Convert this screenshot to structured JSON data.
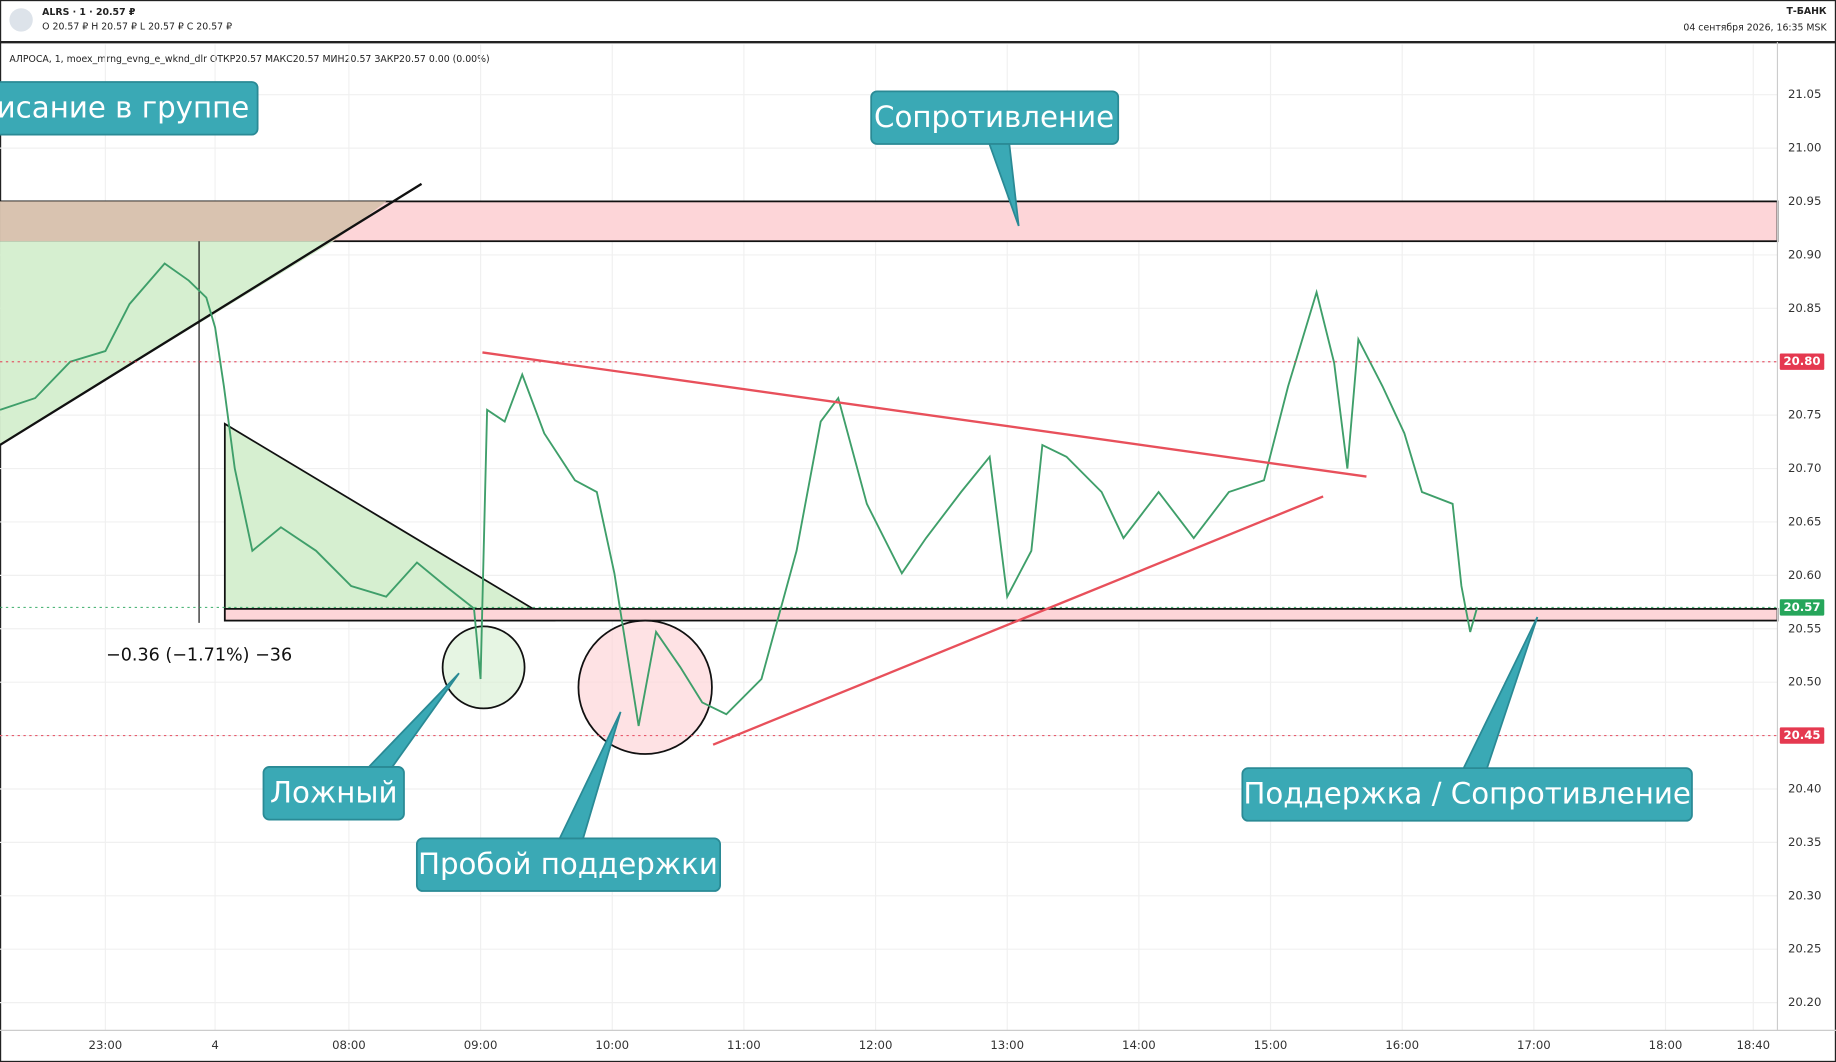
{
  "header": {
    "symbol": "ALRS · 1 · 20.57 ₽",
    "ohlc": "O 20.57 ₽   H 20.57 ₽   L 20.57 ₽   C 20.57 ₽",
    "brand": "Т-БАНК",
    "datetime": "04 сентября 2026, 16:35 MSK",
    "legend": "АЛРОСА, 1, moex_mrng_evng_e_wknd_dlr  ОТКР20.57  МАКС20.57  МИН20.57  ЗАКР20.57  0.00 (0.00%)"
  },
  "chart_data": {
    "type": "line",
    "color": "#3f9f6a",
    "x": [
      -219,
      -203,
      -187,
      -171,
      -160,
      -144,
      -133,
      -125,
      -121,
      -117,
      -112,
      -104,
      -91,
      -75,
      -59,
      -43,
      -29,
      -16,
      -3,
      0,
      3,
      11,
      19,
      29,
      43,
      53,
      61,
      72,
      80,
      91,
      101,
      112,
      128,
      144,
      155,
      163,
      176,
      192,
      203,
      219,
      232,
      240,
      251,
      256,
      267,
      283,
      293,
      309,
      325,
      341,
      357,
      368,
      381,
      389,
      395,
      400,
      411,
      421,
      429,
      443,
      447,
      451,
      454
    ],
    "values": [
      20.755,
      20.766,
      20.8,
      20.81,
      20.854,
      20.892,
      20.876,
      20.86,
      20.832,
      20.777,
      20.7,
      20.623,
      20.645,
      20.623,
      20.59,
      20.58,
      20.612,
      20.59,
      20.569,
      20.503,
      20.755,
      20.744,
      20.788,
      20.733,
      20.689,
      20.678,
      20.602,
      20.459,
      20.547,
      20.514,
      20.481,
      20.47,
      20.503,
      20.623,
      20.744,
      20.766,
      20.667,
      20.602,
      20.635,
      20.678,
      20.711,
      20.58,
      20.623,
      20.722,
      20.711,
      20.678,
      20.635,
      20.678,
      20.635,
      20.678,
      20.689,
      20.777,
      20.865,
      20.799,
      20.7,
      20.821,
      20.777,
      20.733,
      20.678,
      20.667,
      20.59,
      20.547,
      20.569
    ],
    "xlim": [
      -219,
      591
    ],
    "ylim": [
      20.174,
      21.097
    ],
    "xticks": [
      {
        "value": -171,
        "label": "23:00"
      },
      {
        "value": -121,
        "label": "4"
      },
      {
        "value": -60,
        "label": "08:00"
      },
      {
        "value": 0,
        "label": "09:00"
      },
      {
        "value": 60,
        "label": "10:00"
      },
      {
        "value": 120,
        "label": "11:00"
      },
      {
        "value": 180,
        "label": "12:00"
      },
      {
        "value": 240,
        "label": "13:00"
      },
      {
        "value": 300,
        "label": "14:00"
      },
      {
        "value": 360,
        "label": "15:00"
      },
      {
        "value": 420,
        "label": "16:00"
      },
      {
        "value": 480,
        "label": "17:00"
      },
      {
        "value": 540,
        "label": "18:00"
      },
      {
        "value": 580,
        "label": "18:40"
      }
    ],
    "yticks": [
      {
        "value": 20.2,
        "label": "20.20"
      },
      20.25,
      {
        "value": 20.3,
        "label": "20.30"
      },
      20.35,
      {
        "value": 20.4,
        "label": "20.40"
      },
      20.45,
      {
        "value": 20.5,
        "label": "20.50"
      },
      20.55,
      {
        "value": 20.6,
        "label": "20.60"
      },
      20.65,
      {
        "value": 20.7,
        "label": "20.70"
      },
      20.75,
      {
        "value": 20.8,
        "label": "20.80"
      },
      20.85,
      {
        "value": 20.9,
        "label": "20.90"
      },
      20.95,
      {
        "value": 21,
        "label": "21.00"
      },
      21.05
    ],
    "grid": true,
    "price_levels": [
      {
        "value": 20.8,
        "label": "20.80",
        "color": "#e53950"
      },
      {
        "value": 20.57,
        "label": "20.57",
        "color": "#26a65b"
      },
      {
        "value": 20.45,
        "label": "20.45",
        "color": "#e53950"
      }
    ]
  },
  "annotations": {
    "group": "исание в группе",
    "resistance": "Сопротивление",
    "false_break": "Ложный",
    "breakout": "Пробой поддержки",
    "support_resistance": "Поддержка / Сопротивление",
    "measure": "−0.36 (−1.71%) −36"
  }
}
